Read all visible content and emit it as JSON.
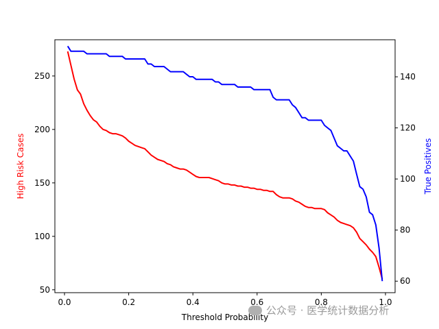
{
  "chart_data": {
    "type": "line",
    "title": "",
    "xlabel": "Threshold Probability",
    "xlim": [
      -0.03,
      1.03
    ],
    "x_ticks": [
      0.0,
      0.2,
      0.4,
      0.6,
      0.8,
      1.0
    ],
    "x_tick_labels": [
      "0.0",
      "0.2",
      "0.4",
      "0.6",
      "0.8",
      "1.0"
    ],
    "left_axis": {
      "label": "High Risk Cases",
      "color": "#ff0000",
      "ylim": [
        47.3,
        283.9
      ],
      "ticks": [
        50,
        100,
        150,
        200,
        250
      ],
      "tick_labels": [
        "50",
        "100",
        "150",
        "200",
        "250"
      ]
    },
    "right_axis": {
      "label": "True Positives",
      "color": "#0000ff",
      "ylim": [
        55.5,
        154.5
      ],
      "ticks": [
        60,
        80,
        100,
        120,
        140
      ],
      "tick_labels": [
        "60",
        "80",
        "100",
        "120",
        "140"
      ]
    },
    "grid": false,
    "series": [
      {
        "axis": "left",
        "color": "#ff0000",
        "points": [
          [
            0.01,
            273
          ],
          [
            0.02,
            260
          ],
          [
            0.03,
            247
          ],
          [
            0.04,
            237
          ],
          [
            0.05,
            233
          ],
          [
            0.06,
            224
          ],
          [
            0.07,
            218
          ],
          [
            0.08,
            213
          ],
          [
            0.09,
            209
          ],
          [
            0.1,
            207
          ],
          [
            0.11,
            203
          ],
          [
            0.12,
            200
          ],
          [
            0.13,
            199
          ],
          [
            0.14,
            197
          ],
          [
            0.15,
            196
          ],
          [
            0.16,
            196
          ],
          [
            0.17,
            195
          ],
          [
            0.18,
            194
          ],
          [
            0.19,
            192
          ],
          [
            0.2,
            189
          ],
          [
            0.21,
            187
          ],
          [
            0.22,
            185
          ],
          [
            0.23,
            184
          ],
          [
            0.24,
            183
          ],
          [
            0.25,
            182
          ],
          [
            0.26,
            179
          ],
          [
            0.27,
            176
          ],
          [
            0.28,
            174
          ],
          [
            0.29,
            172
          ],
          [
            0.3,
            171
          ],
          [
            0.31,
            170
          ],
          [
            0.32,
            168
          ],
          [
            0.33,
            167
          ],
          [
            0.34,
            165
          ],
          [
            0.35,
            164
          ],
          [
            0.36,
            163
          ],
          [
            0.37,
            163
          ],
          [
            0.38,
            162
          ],
          [
            0.39,
            160
          ],
          [
            0.4,
            158
          ],
          [
            0.41,
            156
          ],
          [
            0.42,
            155
          ],
          [
            0.43,
            155
          ],
          [
            0.44,
            155
          ],
          [
            0.45,
            155
          ],
          [
            0.46,
            154
          ],
          [
            0.47,
            153
          ],
          [
            0.48,
            152
          ],
          [
            0.49,
            150
          ],
          [
            0.5,
            149
          ],
          [
            0.51,
            149
          ],
          [
            0.52,
            148
          ],
          [
            0.53,
            148
          ],
          [
            0.54,
            147
          ],
          [
            0.55,
            147
          ],
          [
            0.56,
            146
          ],
          [
            0.57,
            146
          ],
          [
            0.58,
            145
          ],
          [
            0.59,
            145
          ],
          [
            0.6,
            144
          ],
          [
            0.61,
            144
          ],
          [
            0.62,
            143
          ],
          [
            0.63,
            143
          ],
          [
            0.64,
            142
          ],
          [
            0.65,
            142
          ],
          [
            0.66,
            139
          ],
          [
            0.67,
            137
          ],
          [
            0.68,
            136
          ],
          [
            0.69,
            136
          ],
          [
            0.7,
            136
          ],
          [
            0.71,
            135
          ],
          [
            0.72,
            133
          ],
          [
            0.73,
            132
          ],
          [
            0.74,
            130
          ],
          [
            0.75,
            128
          ],
          [
            0.76,
            127
          ],
          [
            0.77,
            127
          ],
          [
            0.78,
            126
          ],
          [
            0.79,
            126
          ],
          [
            0.8,
            126
          ],
          [
            0.81,
            125
          ],
          [
            0.82,
            122
          ],
          [
            0.83,
            120
          ],
          [
            0.84,
            118
          ],
          [
            0.85,
            115
          ],
          [
            0.86,
            113
          ],
          [
            0.87,
            112
          ],
          [
            0.88,
            111
          ],
          [
            0.89,
            110
          ],
          [
            0.9,
            108
          ],
          [
            0.91,
            104
          ],
          [
            0.92,
            98
          ],
          [
            0.93,
            95
          ],
          [
            0.94,
            92
          ],
          [
            0.95,
            88
          ],
          [
            0.96,
            85
          ],
          [
            0.97,
            81
          ],
          [
            0.98,
            71
          ],
          [
            0.99,
            60
          ]
        ]
      },
      {
        "axis": "right",
        "color": "#0000ff",
        "points": [
          [
            0.01,
            152
          ],
          [
            0.02,
            150
          ],
          [
            0.03,
            150
          ],
          [
            0.04,
            150
          ],
          [
            0.05,
            150
          ],
          [
            0.06,
            150
          ],
          [
            0.07,
            149
          ],
          [
            0.08,
            149
          ],
          [
            0.09,
            149
          ],
          [
            0.1,
            149
          ],
          [
            0.11,
            149
          ],
          [
            0.12,
            149
          ],
          [
            0.13,
            149
          ],
          [
            0.14,
            148
          ],
          [
            0.15,
            148
          ],
          [
            0.16,
            148
          ],
          [
            0.17,
            148
          ],
          [
            0.18,
            148
          ],
          [
            0.19,
            147
          ],
          [
            0.2,
            147
          ],
          [
            0.21,
            147
          ],
          [
            0.22,
            147
          ],
          [
            0.23,
            147
          ],
          [
            0.24,
            147
          ],
          [
            0.25,
            147
          ],
          [
            0.26,
            145
          ],
          [
            0.27,
            145
          ],
          [
            0.28,
            144
          ],
          [
            0.29,
            144
          ],
          [
            0.3,
            144
          ],
          [
            0.31,
            144
          ],
          [
            0.32,
            143
          ],
          [
            0.33,
            142
          ],
          [
            0.34,
            142
          ],
          [
            0.35,
            142
          ],
          [
            0.36,
            142
          ],
          [
            0.37,
            142
          ],
          [
            0.38,
            141
          ],
          [
            0.39,
            140
          ],
          [
            0.4,
            140
          ],
          [
            0.41,
            139
          ],
          [
            0.42,
            139
          ],
          [
            0.43,
            139
          ],
          [
            0.44,
            139
          ],
          [
            0.45,
            139
          ],
          [
            0.46,
            139
          ],
          [
            0.47,
            138
          ],
          [
            0.48,
            138
          ],
          [
            0.49,
            137
          ],
          [
            0.5,
            137
          ],
          [
            0.51,
            137
          ],
          [
            0.52,
            137
          ],
          [
            0.53,
            137
          ],
          [
            0.54,
            136
          ],
          [
            0.55,
            136
          ],
          [
            0.56,
            136
          ],
          [
            0.57,
            136
          ],
          [
            0.58,
            136
          ],
          [
            0.59,
            135
          ],
          [
            0.6,
            135
          ],
          [
            0.61,
            135
          ],
          [
            0.62,
            135
          ],
          [
            0.63,
            135
          ],
          [
            0.64,
            135
          ],
          [
            0.65,
            132
          ],
          [
            0.66,
            131
          ],
          [
            0.67,
            131
          ],
          [
            0.68,
            131
          ],
          [
            0.69,
            131
          ],
          [
            0.7,
            131
          ],
          [
            0.71,
            129
          ],
          [
            0.72,
            128
          ],
          [
            0.73,
            126
          ],
          [
            0.74,
            124
          ],
          [
            0.75,
            124
          ],
          [
            0.76,
            123
          ],
          [
            0.77,
            123
          ],
          [
            0.78,
            123
          ],
          [
            0.79,
            123
          ],
          [
            0.8,
            123
          ],
          [
            0.81,
            121
          ],
          [
            0.82,
            120
          ],
          [
            0.83,
            119
          ],
          [
            0.84,
            116
          ],
          [
            0.85,
            113
          ],
          [
            0.86,
            112
          ],
          [
            0.87,
            111
          ],
          [
            0.88,
            111
          ],
          [
            0.89,
            109
          ],
          [
            0.9,
            107
          ],
          [
            0.91,
            102
          ],
          [
            0.92,
            97
          ],
          [
            0.93,
            96
          ],
          [
            0.94,
            93
          ],
          [
            0.95,
            87
          ],
          [
            0.96,
            86
          ],
          [
            0.97,
            82
          ],
          [
            0.98,
            73
          ],
          [
            0.99,
            60
          ]
        ]
      }
    ]
  },
  "watermark": {
    "text": "公众号 · 医学统计数据分析"
  }
}
